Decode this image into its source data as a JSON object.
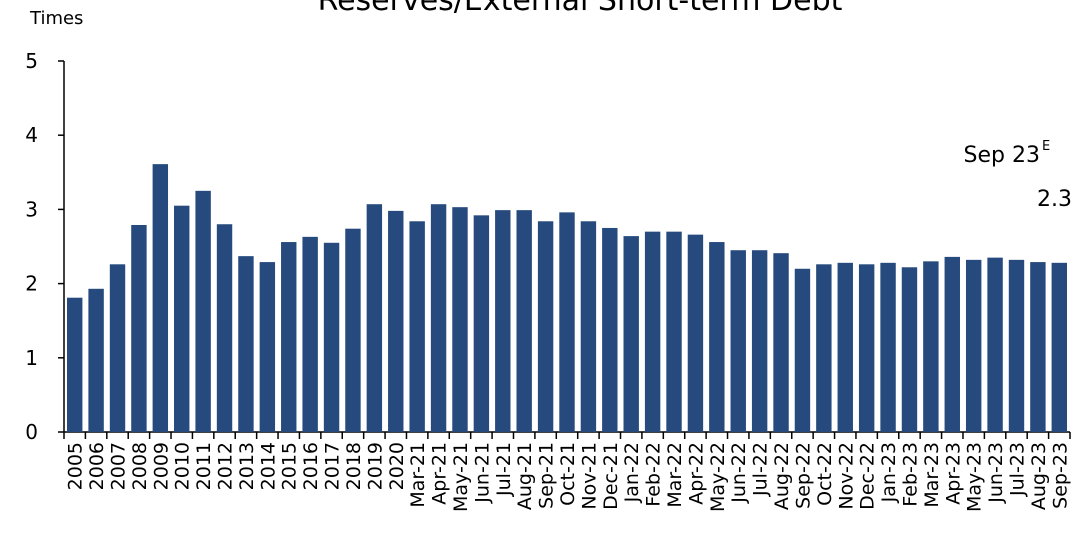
{
  "chart_data": {
    "type": "bar",
    "title": "Reserves/External Short-term Debt",
    "y_label": "Times",
    "categories": [
      "2005",
      "2006",
      "2007",
      "2008",
      "2009",
      "2010",
      "2011",
      "2012",
      "2013",
      "2014",
      "2015",
      "2016",
      "2017",
      "2018",
      "2019",
      "2020",
      "Mar-21",
      "Apr-21",
      "May-21",
      "Jun-21",
      "Jul-21",
      "Aug-21",
      "Sep-21",
      "Oct-21",
      "Nov-21",
      "Dec-21",
      "Jan-22",
      "Feb-22",
      "Mar-22",
      "Apr-22",
      "May-22",
      "Jun-22",
      "Jul-22",
      "Aug-22",
      "Sep-22",
      "Oct-22",
      "Nov-22",
      "Dec-22",
      "Jan-23",
      "Feb-23",
      "Mar-23",
      "Apr-23",
      "May-23",
      "Jun-23",
      "Jul-23",
      "Aug-23",
      "Sep-23"
    ],
    "values": [
      1.81,
      1.93,
      2.26,
      2.79,
      3.61,
      3.05,
      3.25,
      2.8,
      2.37,
      2.29,
      2.56,
      2.63,
      2.55,
      2.74,
      3.07,
      2.98,
      2.84,
      3.07,
      3.03,
      2.92,
      2.99,
      2.99,
      2.84,
      2.96,
      2.84,
      2.75,
      2.64,
      2.7,
      2.7,
      2.66,
      2.56,
      2.45,
      2.45,
      2.41,
      2.2,
      2.26,
      2.28,
      2.26,
      2.28,
      2.22,
      2.3,
      2.36,
      2.32,
      2.35,
      2.32,
      2.29,
      2.28
    ],
    "color": "#264a7e",
    "ylim": [
      0,
      5
    ],
    "yticks": [
      0,
      1,
      2,
      3,
      4,
      5
    ],
    "grid": false,
    "annotation": {
      "text": "Sep 23",
      "superscript": "E",
      "value_text": "2.3"
    }
  }
}
